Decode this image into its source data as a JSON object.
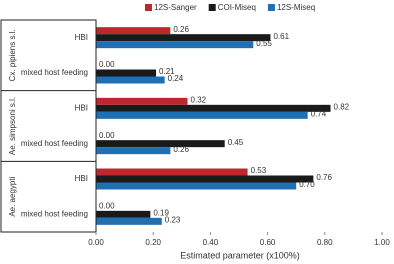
{
  "chart_data": {
    "type": "grouped-hbar",
    "x_label": "Estimated parameter (x100%)",
    "groups": [
      "Cx. pipiens s.l.",
      "Ae. simpsoni s.l.",
      "Ae. aegypti"
    ],
    "categories": [
      "HBI",
      "mixed host feeding",
      "HBI",
      "mixed host feeding",
      "HBI",
      "mixed host feeding"
    ],
    "series": [
      {
        "name": "12S-Sanger",
        "color": "#c0272d",
        "values": [
          0.26,
          0,
          0.32,
          0,
          0.53,
          0
        ],
        "value_labels": [
          "0.26",
          "0.00",
          "0.32",
          "0.00",
          "0.53",
          "0.00"
        ]
      },
      {
        "name": "COI-Miseq",
        "color": "#1a1a1a",
        "values": [
          0.61,
          0.21,
          0.82,
          0.45,
          0.76,
          0.19
        ],
        "value_labels": [
          "0.61",
          "0.21",
          "0.82",
          "0.45",
          "0.76",
          "0.19"
        ]
      },
      {
        "name": "12S-Miseq",
        "color": "#1f6fb4",
        "values": [
          0.55,
          0.24,
          0.74,
          0.26,
          0.7,
          0.23
        ],
        "value_labels": [
          "0.55",
          "0.24",
          "0.74",
          "0.26",
          "0.70",
          "0.23"
        ]
      }
    ],
    "xlim": [
      0,
      1
    ],
    "xticks": [
      {
        "value": 0,
        "label": "0.00"
      },
      {
        "value": 0.2,
        "label": "0.20"
      },
      {
        "value": 0.4,
        "label": "0.40"
      },
      {
        "value": 0.6,
        "label": "0.60"
      },
      {
        "value": 0.8,
        "label": "0.80"
      },
      {
        "value": 1,
        "label": "1.00"
      }
    ],
    "legend": "top"
  }
}
